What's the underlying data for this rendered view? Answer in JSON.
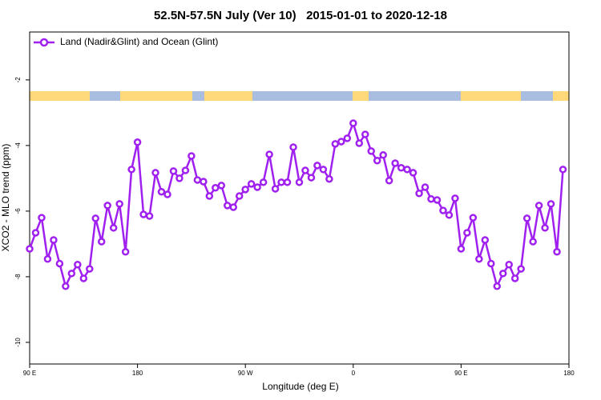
{
  "chart_data": {
    "type": "line",
    "title": "52.5N-57.5N July (Ver 10)   2015-01-01 to 2020-12-18",
    "xlabel": "Longitude (deg E)",
    "ylabel": "XCO2 - MLO trend (ppm)",
    "x": [
      90,
      95,
      100,
      105,
      110,
      115,
      120,
      125,
      130,
      135,
      140,
      145,
      150,
      155,
      160,
      165,
      170,
      175,
      180,
      185,
      190,
      195,
      200,
      205,
      210,
      215,
      220,
      225,
      230,
      235,
      240,
      245,
      250,
      255,
      260,
      265,
      270,
      275,
      280,
      285,
      290,
      295,
      300,
      305,
      310,
      315,
      320,
      325,
      330,
      335,
      340,
      345,
      350,
      355,
      360,
      365,
      370,
      375,
      380,
      385,
      390,
      395,
      400,
      405,
      410,
      415,
      420,
      425,
      430,
      435,
      440,
      445,
      450,
      455,
      460,
      465,
      470,
      475,
      480,
      485,
      490,
      495,
      500,
      505,
      510,
      515,
      520,
      525,
      530,
      535
    ],
    "series": [
      {
        "name": "Land (Nadir&Glint) and Ocean (Glint)",
        "color": "#a020f0",
        "values": [
          -7.15,
          -6.66,
          -6.2,
          -7.46,
          -6.88,
          -7.6,
          -8.29,
          -7.9,
          -7.63,
          -8.05,
          -7.76,
          -6.22,
          -6.93,
          -5.83,
          -6.51,
          -5.78,
          -7.24,
          -4.73,
          -3.9,
          -6.1,
          -6.15,
          -4.83,
          -5.41,
          -5.49,
          -4.78,
          -5.0,
          -4.76,
          -4.32,
          -5.05,
          -5.1,
          -5.54,
          -5.29,
          -5.22,
          -5.83,
          -5.88,
          -5.54,
          -5.34,
          -5.17,
          -5.27,
          -5.12,
          -4.27,
          -5.32,
          -5.12,
          -5.12,
          -4.05,
          -5.12,
          -4.76,
          -4.98,
          -4.61,
          -4.73,
          -5.02,
          -3.95,
          -3.88,
          -3.78,
          -3.32,
          -3.93,
          -3.66,
          -4.17,
          -4.46,
          -4.29,
          -5.07,
          -4.54,
          -4.68,
          -4.73,
          -4.83,
          -5.46,
          -5.27,
          -5.63,
          -5.66,
          -5.98,
          -6.12,
          -5.61,
          -7.15,
          -6.66,
          -6.2,
          -7.46,
          -6.88,
          -7.6,
          -8.29,
          -7.9,
          -7.63,
          -8.05,
          -7.76,
          -6.22,
          -6.93,
          -5.83,
          -6.51,
          -5.78,
          -7.24,
          -4.73
        ]
      }
    ],
    "xlim": [
      90,
      540
    ],
    "xticks": [
      {
        "value": 90,
        "label": "90 E"
      },
      180,
      {
        "value": 270,
        "label": "90 W"
      },
      {
        "value": 360,
        "label": "0"
      },
      {
        "value": 450,
        "label": "90 E"
      },
      {
        "value": 540,
        "label": "180"
      }
    ],
    "ylim": [
      -10.66,
      -0.54
    ],
    "yticks": [
      -10,
      -8,
      -6,
      -4,
      -2
    ],
    "legend": "top-left"
  }
}
